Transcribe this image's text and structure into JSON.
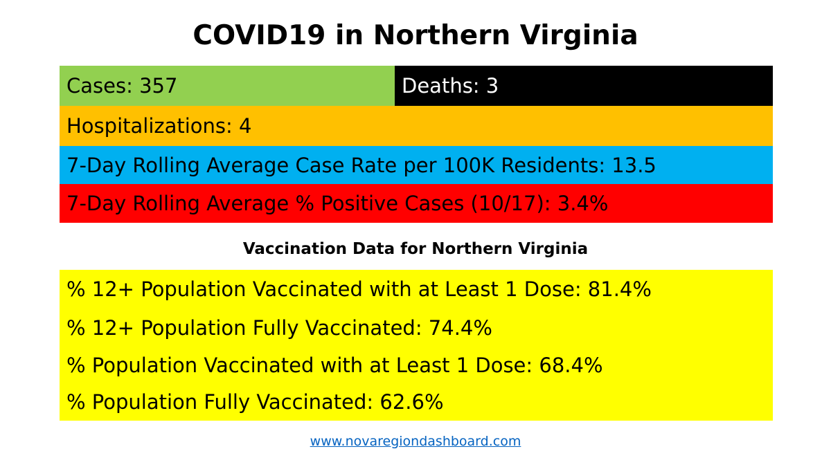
{
  "title": "COVID19 in Northern Virginia",
  "stats": {
    "cases": "Cases: 357",
    "deaths": "Deaths: 3",
    "hospitalizations": "Hospitalizations: 4",
    "case_rate": "7-Day Rolling Average Case Rate per 100K Residents: 13.5",
    "percent_positive": "7-Day Rolling Average % Positive Cases (10/17): 3.4%"
  },
  "vaccination": {
    "heading": "Vaccination Data for Northern Virginia",
    "items": [
      "% 12+ Population Vaccinated with at Least 1 Dose: 81.4%",
      "% 12+ Population Fully Vaccinated: 74.4%",
      "% Population Vaccinated with at Least 1 Dose: 68.4%",
      "% Population Fully Vaccinated: 62.6%"
    ]
  },
  "footer": {
    "link_text": "www.novaregiondashboard.com"
  },
  "colors": {
    "cases": "#92d050",
    "deaths": "#000000",
    "hospitalizations": "#ffc000",
    "case_rate": "#00b0f0",
    "percent_positive": "#ff0000",
    "vaccination": "#ffff00",
    "link": "#0563c1"
  }
}
